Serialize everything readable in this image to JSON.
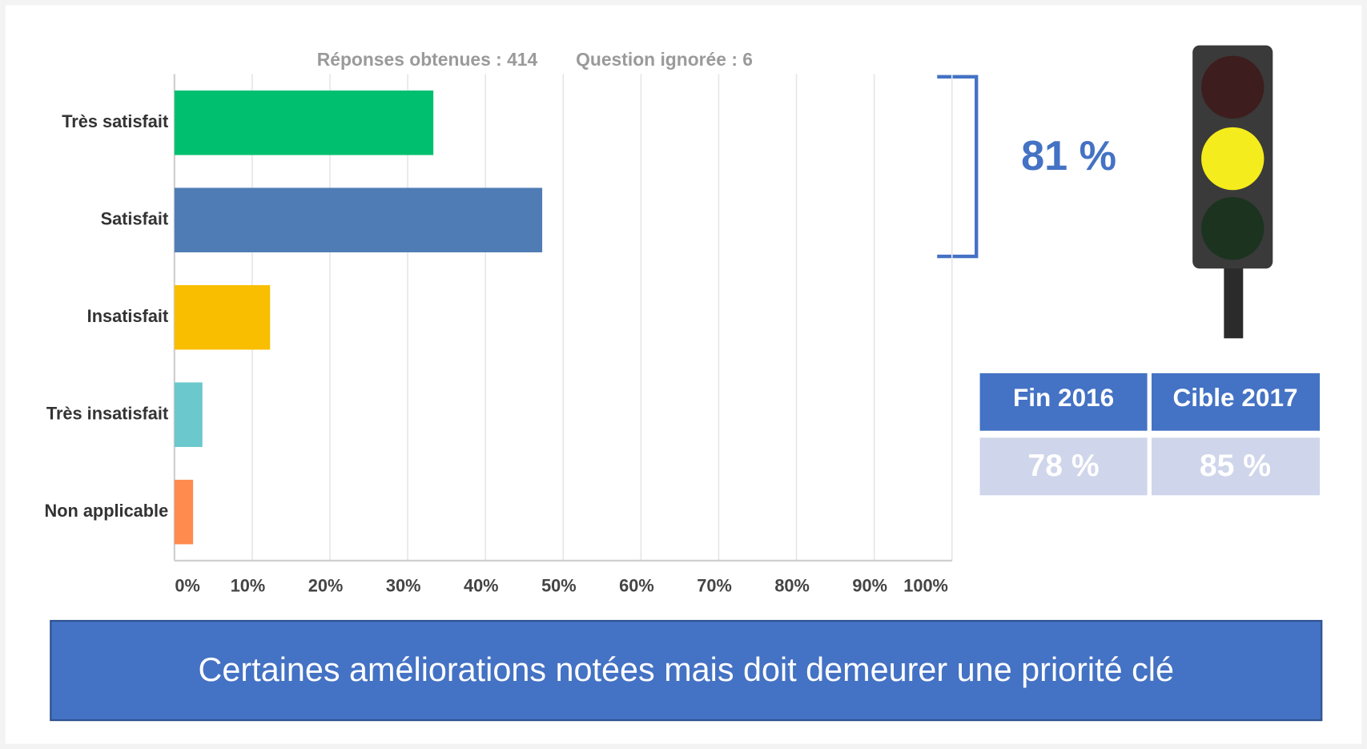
{
  "chart_data": {
    "type": "bar",
    "orientation": "horizontal",
    "subtitles": [
      "Réponses obtenues : 414",
      "Question ignorée : 6"
    ],
    "categories": [
      "Très satisfait",
      "Satisfait",
      "Insatisfait",
      "Très insatisfait",
      "Non applicable"
    ],
    "values": [
      33.3,
      47.3,
      12.3,
      3.6,
      2.4
    ],
    "colors": [
      "#00bf6f",
      "#507cb6",
      "#f9be00",
      "#6bc8cd",
      "#ff8b4f"
    ],
    "xlim": [
      0,
      100
    ],
    "xticks": [
      {
        "value": 0,
        "label": "0%"
      },
      {
        "value": 10,
        "label": "10%"
      },
      {
        "value": 20,
        "label": "20%"
      },
      {
        "value": 30,
        "label": "30%"
      },
      {
        "value": 40,
        "label": "40%"
      },
      {
        "value": 50,
        "label": "50%"
      },
      {
        "value": 60,
        "label": "60%"
      },
      {
        "value": 70,
        "label": "70%"
      },
      {
        "value": 80,
        "label": "80%"
      },
      {
        "value": 90,
        "label": "90%"
      },
      {
        "value": 100,
        "label": "100%"
      }
    ],
    "grid": true
  },
  "summary": "81 %",
  "table": {
    "header": [
      "Fin 2016",
      "Cible 2017"
    ],
    "rows": [
      [
        "78 %",
        "85 %"
      ]
    ]
  },
  "banner": "Certaines améliorations notées mais doit demeurer une priorité clé"
}
